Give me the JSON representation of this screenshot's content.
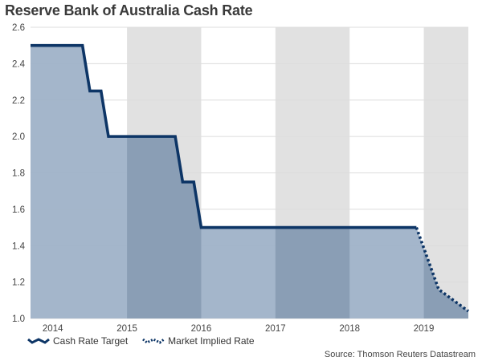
{
  "title": "Reserve Bank of Australia Cash Rate",
  "source": "Source: Thomson Reuters Datastream",
  "colors": {
    "line": "#0d3566",
    "area": "#9fb2c8",
    "area_dark": "#8a9fb6",
    "shade": "#e1e1e1",
    "grid": "#dcdcdc"
  },
  "legend": [
    {
      "label": "Cash Rate Target",
      "style": "solid"
    },
    {
      "label": "Market Implied Rate",
      "style": "dotted"
    }
  ],
  "chart_data": {
    "type": "line",
    "title": "Reserve Bank of Australia Cash Rate",
    "xlabel": "",
    "ylabel": "",
    "xlim": [
      2013.7,
      2019.6
    ],
    "ylim": [
      1.0,
      2.6
    ],
    "yticks": [
      1.0,
      1.2,
      1.4,
      1.6,
      1.8,
      2.0,
      2.2,
      2.4,
      2.6
    ],
    "xtick_labels": [
      {
        "label": "2014",
        "x": 2014.0
      },
      {
        "label": "2015",
        "x": 2015.0
      },
      {
        "label": "2016",
        "x": 2016.0
      },
      {
        "label": "2017",
        "x": 2017.0
      },
      {
        "label": "2018",
        "x": 2018.0
      },
      {
        "label": "2019",
        "x": 2019.0
      }
    ],
    "shaded_years": [
      [
        2015.0,
        2016.0
      ],
      [
        2017.0,
        2018.0
      ],
      [
        2019.0,
        2019.6
      ]
    ],
    "grid": "horizontal",
    "legend_position": "bottom-left",
    "series": [
      {
        "name": "Cash Rate Target",
        "style": "solid",
        "points": [
          [
            2013.7,
            2.5
          ],
          [
            2014.4,
            2.5
          ],
          [
            2014.5,
            2.25
          ],
          [
            2014.65,
            2.25
          ],
          [
            2014.75,
            2.0
          ],
          [
            2015.65,
            2.0
          ],
          [
            2015.75,
            1.75
          ],
          [
            2015.9,
            1.75
          ],
          [
            2016.0,
            1.5
          ],
          [
            2018.9,
            1.5
          ]
        ]
      },
      {
        "name": "Market Implied Rate",
        "style": "dotted",
        "points": [
          [
            2018.9,
            1.5
          ],
          [
            2019.05,
            1.33
          ],
          [
            2019.2,
            1.16
          ],
          [
            2019.4,
            1.1
          ],
          [
            2019.6,
            1.04
          ]
        ]
      }
    ]
  }
}
